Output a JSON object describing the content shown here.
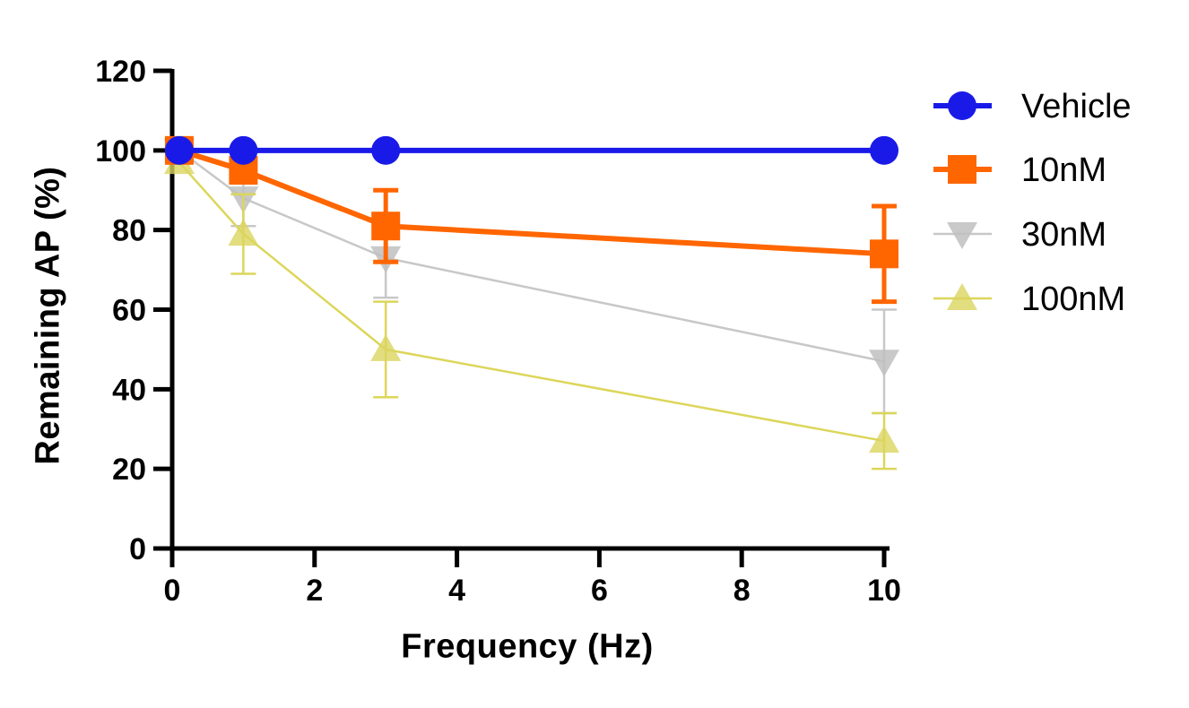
{
  "figure": {
    "background": "#ffffff",
    "axis_color": "#000000",
    "text_color": "#000000"
  },
  "chart_data": {
    "type": "line",
    "title": "",
    "xlabel": "Frequency  (Hz)",
    "ylabel": "Remaining AP  (%)",
    "x": [
      0.1,
      1,
      3,
      10
    ],
    "xlim": [
      0,
      10
    ],
    "ylim": [
      0,
      120
    ],
    "xticks": [
      0,
      2,
      4,
      6,
      8,
      10
    ],
    "yticks": [
      0,
      20,
      40,
      60,
      80,
      100,
      120
    ],
    "grid": false,
    "legend_position": "right",
    "series": [
      {
        "name": "Vehicle",
        "marker": "circle",
        "color": "#1A1AE8",
        "fill": "#1A1AE8",
        "line_width": 6,
        "error_width": 5,
        "values": [
          100,
          100,
          100,
          100
        ],
        "errors": [
          0,
          0,
          0,
          0
        ]
      },
      {
        "name": "10nM",
        "marker": "square",
        "color": "#FF6600",
        "fill": "#FF6600",
        "line_width": 6,
        "error_width": 5,
        "values": [
          100,
          95,
          81,
          74
        ],
        "errors": [
          0,
          2,
          9,
          12
        ]
      },
      {
        "name": "30nM",
        "marker": "triangle-down",
        "color": "#C8C8C8",
        "fill": "rgba(192,192,192,0.85)",
        "line_width": 2.5,
        "error_width": 2.5,
        "values": [
          100,
          88,
          73,
          47
        ],
        "errors": [
          0,
          7,
          10,
          13
        ]
      },
      {
        "name": "100nM",
        "marker": "triangle-up",
        "color": "#DCD65A",
        "fill": "rgba(219,212,95,0.8)",
        "line_width": 2.5,
        "error_width": 2.5,
        "values": [
          97,
          79,
          50,
          27
        ],
        "errors": [
          0,
          10,
          12,
          7
        ]
      }
    ],
    "draw_order": [
      2,
      3,
      1,
      0
    ]
  }
}
